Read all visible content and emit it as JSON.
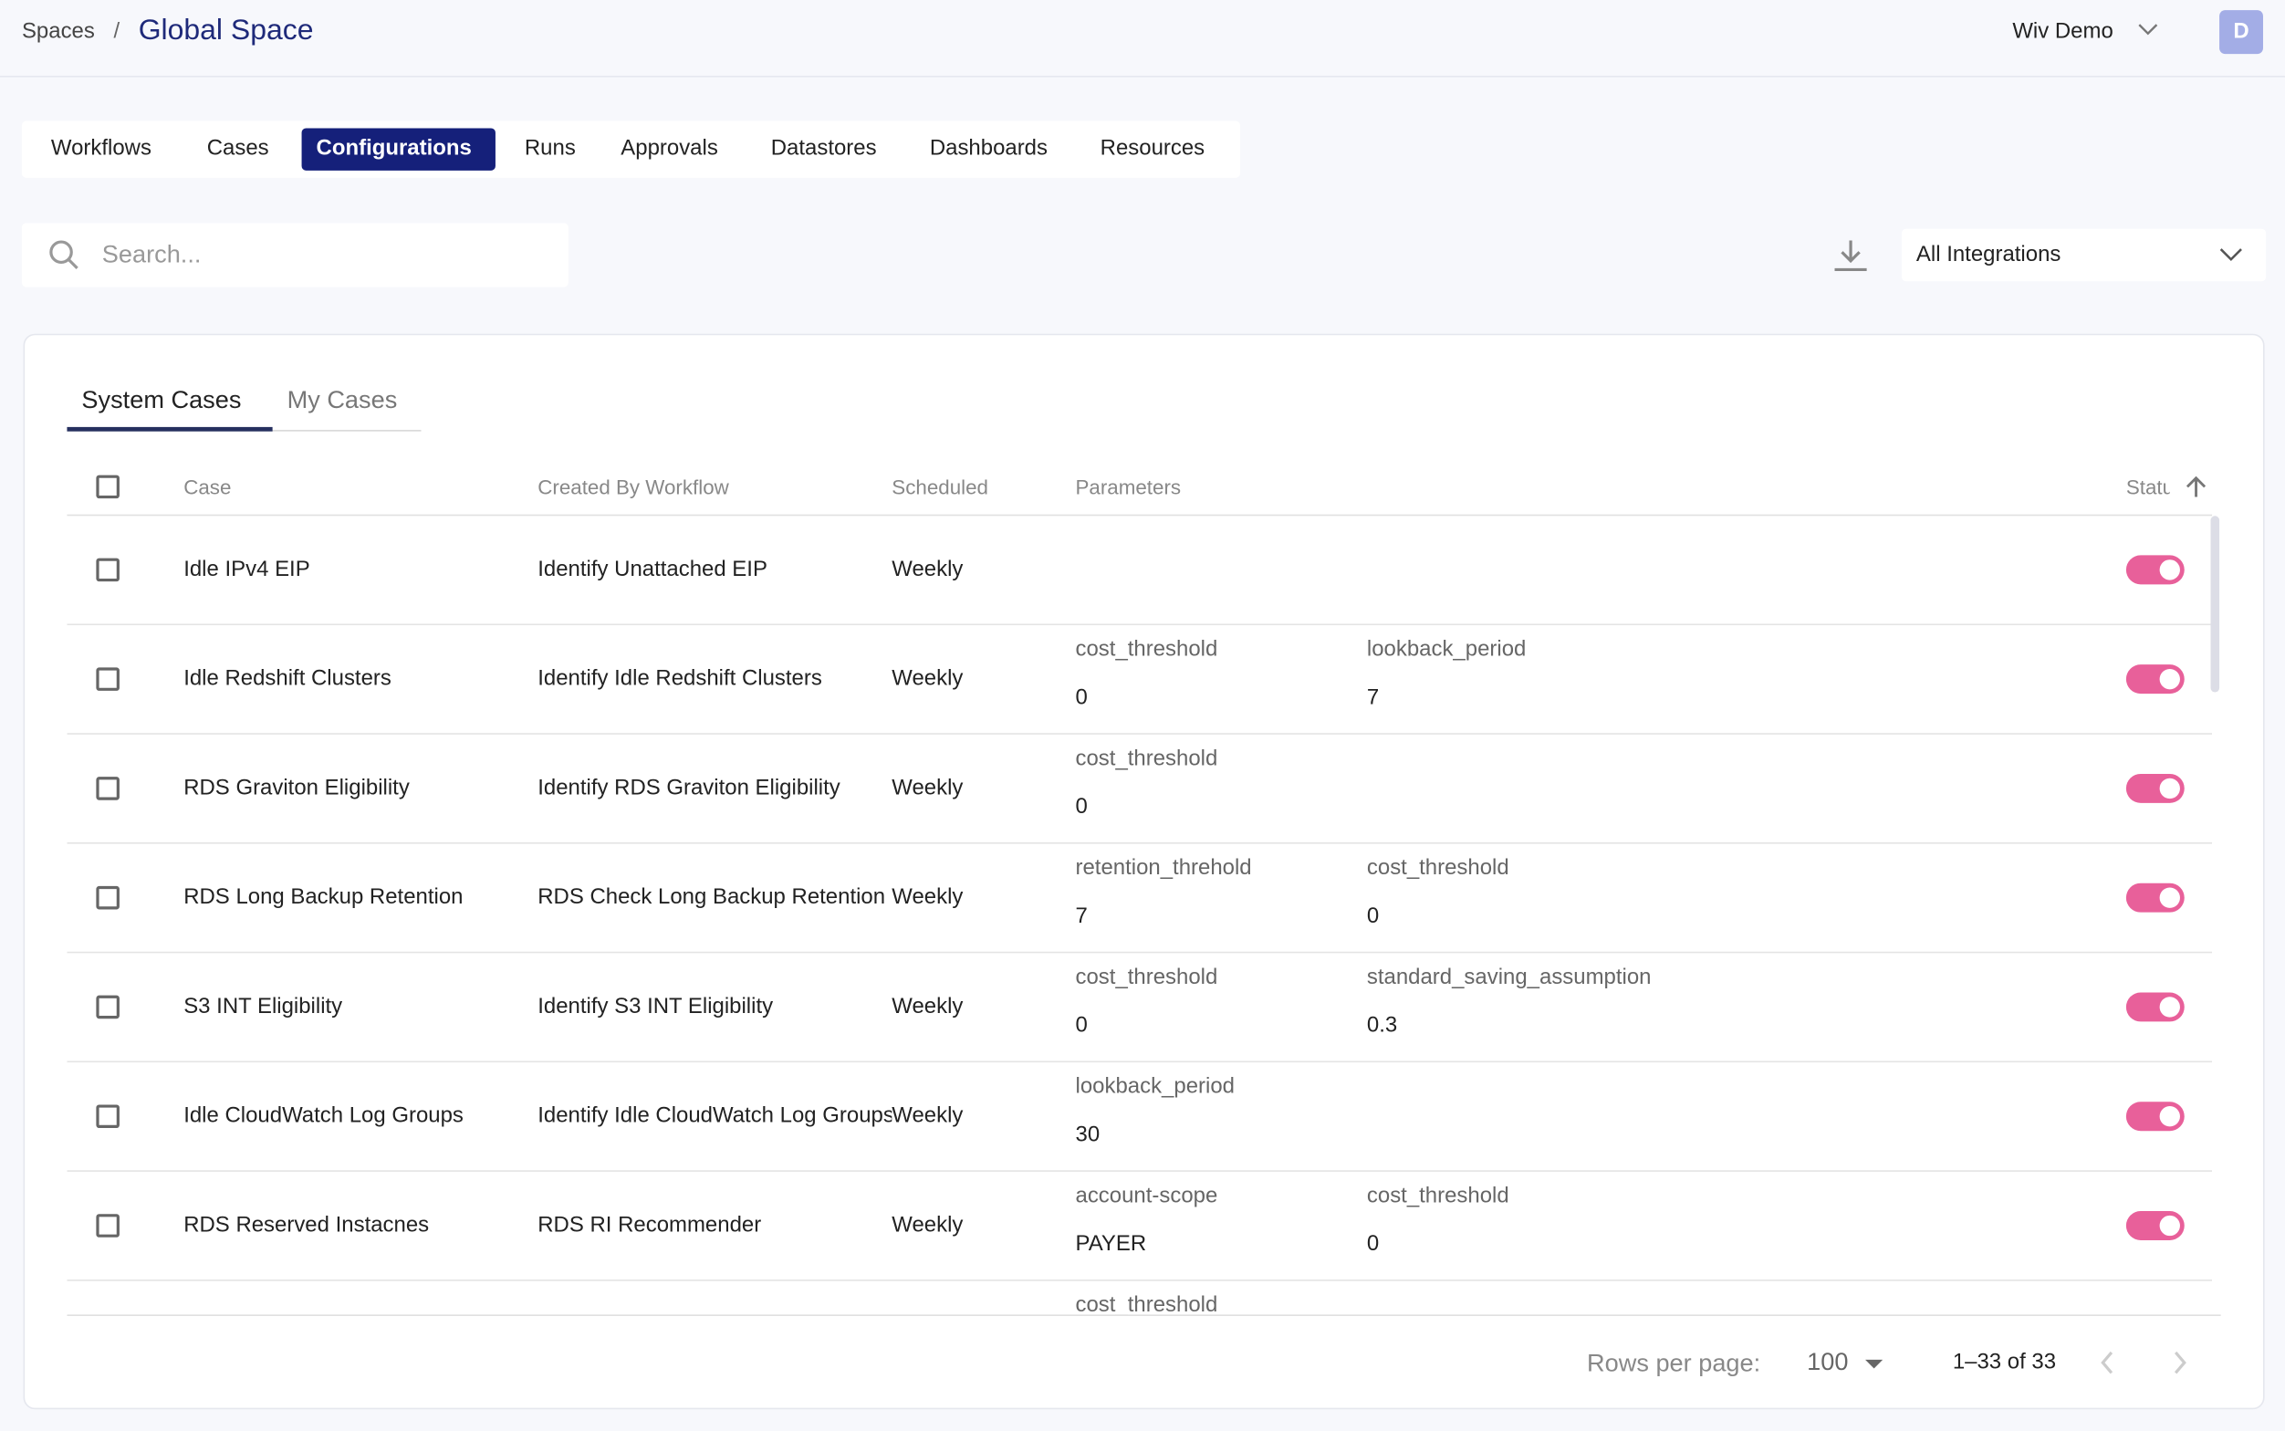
{
  "breadcrumb": {
    "parent": "Spaces",
    "separator": "/",
    "current": "Global Space"
  },
  "user": {
    "name": "Wiv Demo",
    "avatar": "D"
  },
  "tabs": {
    "items": [
      "Workflows",
      "Cases",
      "Configurations",
      "Runs",
      "Approvals",
      "Datastores",
      "Dashboards",
      "Resources"
    ],
    "active": 2
  },
  "search": {
    "placeholder": "Search..."
  },
  "filter": {
    "label": "All Integrations"
  },
  "subtabs": {
    "items": [
      "System Cases",
      "My Cases"
    ],
    "active": 0
  },
  "table": {
    "columns": [
      "Case",
      "Created By Workflow",
      "Scheduled",
      "Parameters",
      "Status"
    ],
    "rows": [
      {
        "case": "Idle IPv4 EIP",
        "workflow": "Identify Unattached EIP",
        "scheduled": "Weekly",
        "params": [],
        "enabled": true
      },
      {
        "case": "Idle Redshift Clusters",
        "workflow": "Identify Idle Redshift Clusters",
        "scheduled": "Weekly",
        "params": [
          {
            "name": "cost_threshold",
            "value": "0"
          },
          {
            "name": "lookback_period",
            "value": "7"
          }
        ],
        "enabled": true
      },
      {
        "case": "RDS Graviton Eligibility",
        "workflow": "Identify RDS Graviton Eligibility",
        "scheduled": "Weekly",
        "params": [
          {
            "name": "cost_threshold",
            "value": "0"
          }
        ],
        "enabled": true
      },
      {
        "case": "RDS Long Backup Retention",
        "workflow": "RDS Check Long Backup Retention",
        "scheduled": "Weekly",
        "params": [
          {
            "name": "retention_threhold",
            "value": "7"
          },
          {
            "name": "cost_threshold",
            "value": "0"
          }
        ],
        "enabled": true
      },
      {
        "case": "S3 INT Eligibility",
        "workflow": "Identify S3 INT Eligibility",
        "scheduled": "Weekly",
        "params": [
          {
            "name": "cost_threshold",
            "value": "0"
          },
          {
            "name": "standard_saving_assumption",
            "value": "0.3"
          }
        ],
        "enabled": true
      },
      {
        "case": "Idle CloudWatch Log Groups",
        "workflow": "Identify Idle CloudWatch Log Groups",
        "scheduled": "Weekly",
        "params": [
          {
            "name": "lookback_period",
            "value": "30"
          }
        ],
        "enabled": true
      },
      {
        "case": "RDS Reserved Instacnes",
        "workflow": "RDS RI Recommender",
        "scheduled": "Weekly",
        "params": [
          {
            "name": "account-scope",
            "value": "PAYER"
          },
          {
            "name": "cost_threshold",
            "value": "0"
          }
        ],
        "enabled": true
      },
      {
        "params": [
          {
            "name": "cost_threshold"
          }
        ]
      }
    ]
  },
  "pagination": {
    "rows_label": "Rows per page:",
    "rows_per_page": "100",
    "range": "1–33 of 33"
  }
}
